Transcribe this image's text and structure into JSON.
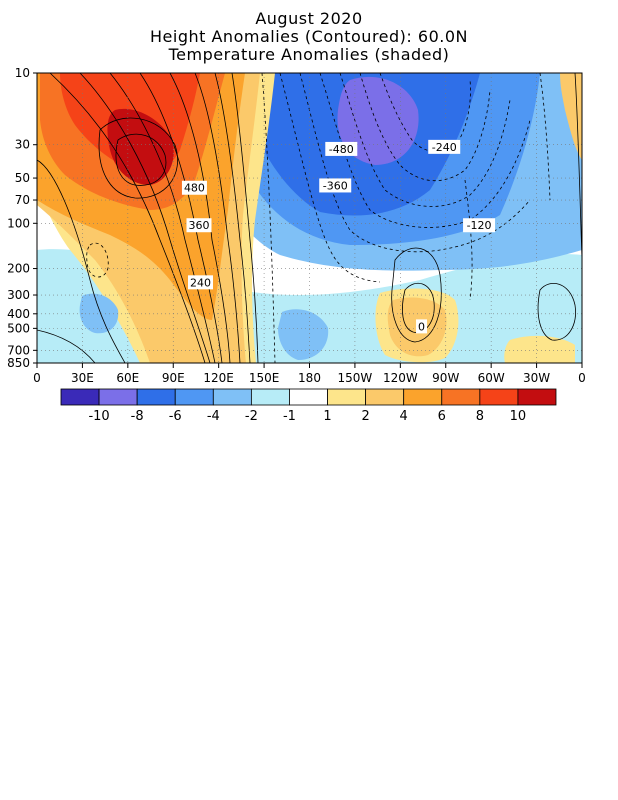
{
  "titles": {
    "line1": "August 2020",
    "line2": "Height Anomalies (Contoured): 60.0N",
    "line3": "Temperature Anomalies (shaded)"
  },
  "chart_data": {
    "type": "heatmap",
    "title": "August 2020",
    "subtitle": [
      "Height Anomalies (Contoured): 60.0N",
      "Temperature Anomalies (shaded)"
    ],
    "x_tick_labels": [
      "0",
      "30E",
      "60E",
      "90E",
      "120E",
      "150E",
      "180",
      "150W",
      "120W",
      "90W",
      "60W",
      "30W",
      "0"
    ],
    "x_tick_longitudes_east": [
      0,
      30,
      60,
      90,
      120,
      150,
      180,
      210,
      240,
      270,
      300,
      330,
      360
    ],
    "y_tick_labels": [
      "10",
      "30",
      "50",
      "70",
      "100",
      "200",
      "300",
      "400",
      "500",
      "700",
      "850"
    ],
    "y_tick_pressures": [
      10,
      30,
      50,
      70,
      100,
      200,
      300,
      400,
      500,
      700,
      850
    ],
    "y_scale": "log",
    "y_inverted": true,
    "xlim": [
      0,
      360
    ],
    "ylim": [
      850,
      10
    ],
    "grid": "dotted",
    "colorbar": {
      "labels": [
        "-10",
        "-8",
        "-6",
        "-4",
        "-2",
        "-1",
        "1",
        "2",
        "4",
        "6",
        "8",
        "10"
      ],
      "colors": [
        "#3a2ab8",
        "#7b6fe8",
        "#2f6fe8",
        "#4f97f3",
        "#7fc0f6",
        "#b7ecf7",
        "#ffffff",
        "#fde58b",
        "#fbc96a",
        "#fba32c",
        "#f77324",
        "#f54318",
        "#c30d10"
      ]
    },
    "shaded_anomalies": [
      {
        "region": "eastern hemisphere stratosphere",
        "lon": [
          10,
          130
        ],
        "p": [
          10,
          500
        ],
        "value": 6
      },
      {
        "region": "core",
        "lon": [
          55,
          85
        ],
        "p": [
          20,
          60
        ],
        "value": 10
      },
      {
        "region": "western hemisphere stratosphere",
        "lon": [
          160,
          320
        ],
        "p": [
          10,
          150
        ],
        "value": -6
      },
      {
        "region": "core",
        "lon": [
          200,
          230
        ],
        "p": [
          10,
          40
        ],
        "value": -8
      }
    ],
    "contour_labels": [
      {
        "text": "480",
        "lon": 104,
        "p": 58
      },
      {
        "text": "360",
        "lon": 107,
        "p": 103
      },
      {
        "text": "240",
        "lon": 108,
        "p": 247
      },
      {
        "text": "-480",
        "lon": 201,
        "p": 32
      },
      {
        "text": "-360",
        "lon": 197,
        "p": 56
      },
      {
        "text": "-240",
        "lon": 269,
        "p": 31
      },
      {
        "text": "-120",
        "lon": 292,
        "p": 103
      },
      {
        "text": "0",
        "lon": 254,
        "p": 485
      }
    ]
  }
}
